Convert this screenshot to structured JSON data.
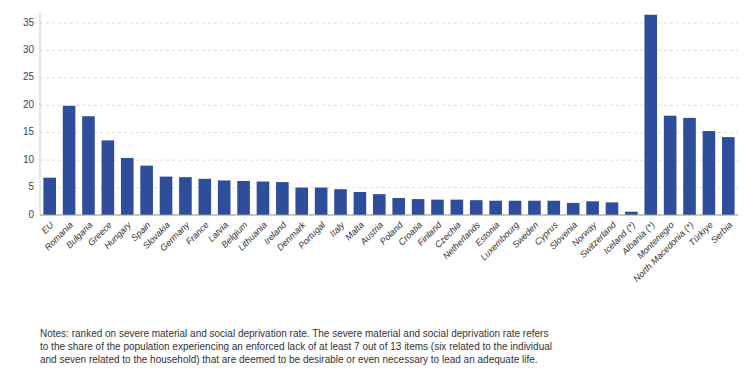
{
  "chart_data": {
    "type": "bar",
    "categories": [
      "EU",
      "Romania",
      "Bulgaria",
      "Greece",
      "Hungary",
      "Spain",
      "Slovakia",
      "Germany",
      "France",
      "Latvia",
      "Belgium",
      "Lithuania",
      "Ireland",
      "Denmark",
      "Portugal",
      "Italy",
      "Malta",
      "Austria",
      "Poland",
      "Croatia",
      "Finland",
      "Czechia",
      "Netherlands",
      "Estonia",
      "Luxembourg",
      "Sweden",
      "Cyprus",
      "Slovenia",
      "Norway",
      "Switzerland",
      "Iceland (*)",
      "Albania (*)",
      "Montenegro",
      "North Macedonia (*)",
      "Türkiye",
      "Serbia"
    ],
    "values": [
      6.8,
      19.9,
      18.0,
      13.6,
      10.4,
      9.0,
      7.0,
      6.9,
      6.6,
      6.3,
      6.2,
      6.1,
      6.0,
      5.0,
      5.0,
      4.7,
      4.2,
      3.8,
      3.1,
      2.9,
      2.8,
      2.8,
      2.7,
      2.6,
      2.6,
      2.6,
      2.6,
      2.2,
      2.5,
      2.3,
      0.6,
      36.5,
      18.1,
      17.7,
      15.3,
      14.2
    ],
    "color": "#2e4d9b",
    "ylim": [
      0,
      37
    ],
    "yticks": [
      0,
      5,
      10,
      15,
      20,
      25,
      30,
      35
    ],
    "grid": true,
    "annotations": [
      "Notes: ranked on severe material and social deprivation rate. The severe material and social deprivation rate refers\nto the share of the population experiencing an enforced lack of at least 7 out of 13 items (six related to the individual\nand seven related to the household) that are deemed to be desirable or even necessary to lead an adequate life."
    ]
  }
}
